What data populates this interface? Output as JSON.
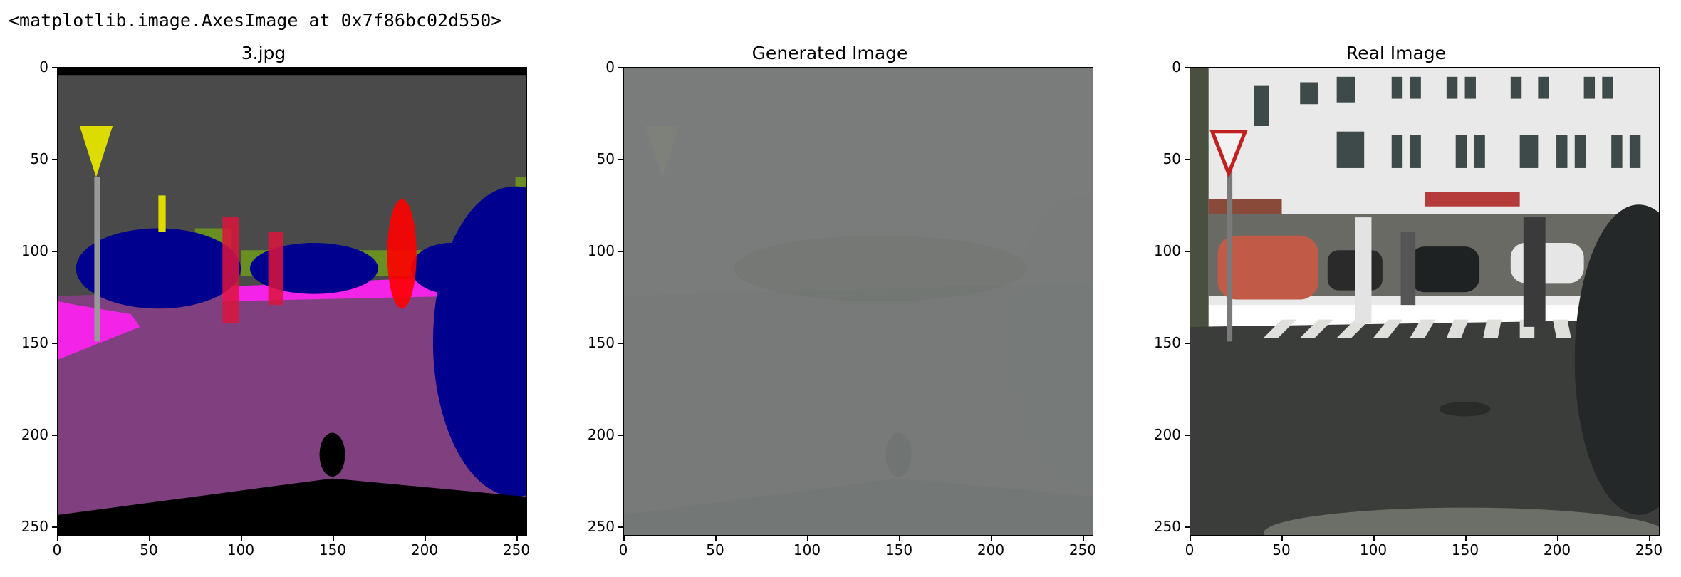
{
  "output_text": "<matplotlib.image.AxesImage at 0x7f86bc02d550>",
  "panels": [
    {
      "title": "3.jpg",
      "image": "segmentation-label-map"
    },
    {
      "title": "Generated Image",
      "image": "generated-gray-output"
    },
    {
      "title": "Real Image",
      "image": "street-photo"
    }
  ],
  "axes": {
    "xticks": [
      "0",
      "50",
      "100",
      "150",
      "200",
      "250"
    ],
    "yticks": [
      "0",
      "50",
      "100",
      "150",
      "200",
      "250"
    ]
  }
}
